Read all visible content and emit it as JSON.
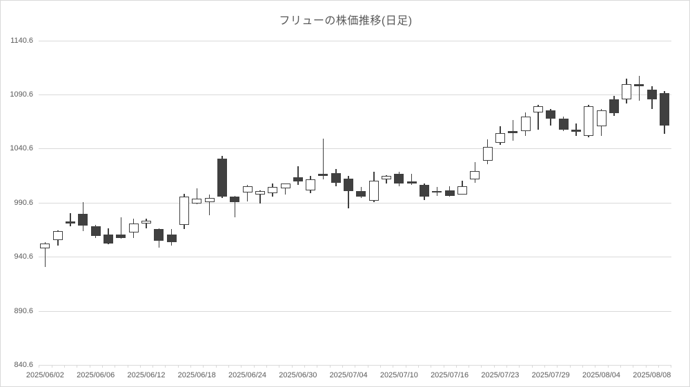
{
  "chart_data": {
    "type": "candlestick",
    "title": "フリューの株価推移(日足)",
    "legend": false,
    "grid": true,
    "y_axis": {
      "min": 840.6,
      "max": 1140.6,
      "step": 50,
      "tick_labels": [
        "1140.6",
        "1090.6",
        "1040.6",
        "990.6",
        "940.6",
        "890.6",
        "840.6"
      ]
    },
    "x_axis": {
      "tick_labels": [
        "2025/06/02",
        "2025/06/06",
        "2025/06/12",
        "2025/06/18",
        "2025/06/24",
        "2025/06/30",
        "2025/07/04",
        "2025/07/10",
        "2025/07/16",
        "2025/07/23",
        "2025/07/29",
        "2025/08/04",
        "2025/08/08"
      ],
      "label_every_n_candles": 4
    },
    "candles": [
      {
        "date": "2025/06/02",
        "open": 948,
        "high": 954,
        "low": 931,
        "close": 953
      },
      {
        "date": "2025/06/03",
        "open": 956,
        "high": 965,
        "low": 951,
        "close": 964
      },
      {
        "date": "2025/06/04",
        "open": 973,
        "high": 981,
        "low": 969,
        "close": 971
      },
      {
        "date": "2025/06/05",
        "open": 980,
        "high": 991,
        "low": 964,
        "close": 969
      },
      {
        "date": "2025/06/06",
        "open": 969,
        "high": 970,
        "low": 958,
        "close": 960
      },
      {
        "date": "2025/06/09",
        "open": 961,
        "high": 967,
        "low": 952,
        "close": 953
      },
      {
        "date": "2025/06/10",
        "open": 961,
        "high": 977,
        "low": 957,
        "close": 958
      },
      {
        "date": "2025/06/11",
        "open": 963,
        "high": 976,
        "low": 958,
        "close": 971
      },
      {
        "date": "2025/06/12",
        "open": 971,
        "high": 976,
        "low": 967,
        "close": 974
      },
      {
        "date": "2025/06/13",
        "open": 966,
        "high": 967,
        "low": 949,
        "close": 955
      },
      {
        "date": "2025/06/16",
        "open": 961,
        "high": 966,
        "low": 951,
        "close": 954
      },
      {
        "date": "2025/06/17",
        "open": 970,
        "high": 999,
        "low": 966,
        "close": 996
      },
      {
        "date": "2025/06/18",
        "open": 990,
        "high": 1004,
        "low": 989,
        "close": 994
      },
      {
        "date": "2025/06/19",
        "open": 991,
        "high": 998,
        "low": 979,
        "close": 995
      },
      {
        "date": "2025/06/20",
        "open": 1031,
        "high": 1034,
        "low": 995,
        "close": 996
      },
      {
        "date": "2025/06/23",
        "open": 996,
        "high": 997,
        "low": 977,
        "close": 991
      },
      {
        "date": "2025/06/24",
        "open": 1000,
        "high": 1007,
        "low": 992,
        "close": 1006
      },
      {
        "date": "2025/06/25",
        "open": 998,
        "high": 1002,
        "low": 990,
        "close": 1001
      },
      {
        "date": "2025/06/26",
        "open": 999,
        "high": 1008,
        "low": 996,
        "close": 1005
      },
      {
        "date": "2025/06/27",
        "open": 1004,
        "high": 1008,
        "low": 998,
        "close": 1008
      },
      {
        "date": "2025/06/30",
        "open": 1014,
        "high": 1024,
        "low": 1007,
        "close": 1010
      },
      {
        "date": "2025/07/01",
        "open": 1002,
        "high": 1015,
        "low": 999,
        "close": 1012
      },
      {
        "date": "2025/07/02",
        "open": 1017,
        "high": 1050,
        "low": 1012,
        "close": 1015
      },
      {
        "date": "2025/07/03",
        "open": 1018,
        "high": 1022,
        "low": 1006,
        "close": 1009
      },
      {
        "date": "2025/07/04",
        "open": 1013,
        "high": 1015,
        "low": 985,
        "close": 1001
      },
      {
        "date": "2025/07/07",
        "open": 1001,
        "high": 1005,
        "low": 995,
        "close": 996
      },
      {
        "date": "2025/07/08",
        "open": 992,
        "high": 1019,
        "low": 991,
        "close": 1011
      },
      {
        "date": "2025/07/09",
        "open": 1012,
        "high": 1016,
        "low": 1008,
        "close": 1015
      },
      {
        "date": "2025/07/10",
        "open": 1017,
        "high": 1019,
        "low": 1006,
        "close": 1008
      },
      {
        "date": "2025/07/11",
        "open": 1010,
        "high": 1017,
        "low": 1007,
        "close": 1008
      },
      {
        "date": "2025/07/14",
        "open": 1007,
        "high": 1008,
        "low": 993,
        "close": 996
      },
      {
        "date": "2025/07/15",
        "open": 1001,
        "high": 1005,
        "low": 997,
        "close": 1000
      },
      {
        "date": "2025/07/16",
        "open": 1002,
        "high": 1006,
        "low": 996,
        "close": 997
      },
      {
        "date": "2025/07/17",
        "open": 998,
        "high": 1011,
        "low": 998,
        "close": 1006
      },
      {
        "date": "2025/07/18",
        "open": 1012,
        "high": 1028,
        "low": 1009,
        "close": 1020
      },
      {
        "date": "2025/07/22",
        "open": 1029,
        "high": 1049,
        "low": 1026,
        "close": 1042
      },
      {
        "date": "2025/07/23",
        "open": 1046,
        "high": 1061,
        "low": 1044,
        "close": 1055
      },
      {
        "date": "2025/07/24",
        "open": 1057,
        "high": 1067,
        "low": 1048,
        "close": 1055
      },
      {
        "date": "2025/07/25",
        "open": 1057,
        "high": 1074,
        "low": 1052,
        "close": 1070
      },
      {
        "date": "2025/07/28",
        "open": 1074,
        "high": 1081,
        "low": 1058,
        "close": 1080
      },
      {
        "date": "2025/07/29",
        "open": 1076,
        "high": 1077,
        "low": 1062,
        "close": 1068
      },
      {
        "date": "2025/07/30",
        "open": 1068,
        "high": 1070,
        "low": 1057,
        "close": 1058
      },
      {
        "date": "2025/07/31",
        "open": 1058,
        "high": 1064,
        "low": 1052,
        "close": 1056
      },
      {
        "date": "2025/08/01",
        "open": 1052,
        "high": 1081,
        "low": 1051,
        "close": 1080
      },
      {
        "date": "2025/08/04",
        "open": 1061,
        "high": 1077,
        "low": 1052,
        "close": 1076
      },
      {
        "date": "2025/08/05",
        "open": 1086,
        "high": 1089,
        "low": 1071,
        "close": 1073
      },
      {
        "date": "2025/08/06",
        "open": 1086,
        "high": 1105,
        "low": 1082,
        "close": 1100
      },
      {
        "date": "2025/08/07",
        "open": 1100,
        "high": 1108,
        "low": 1085,
        "close": 1098
      },
      {
        "date": "2025/08/08",
        "open": 1095,
        "high": 1098,
        "low": 1077,
        "close": 1086
      },
      {
        "date": "2025/08/12",
        "open": 1092,
        "high": 1094,
        "low": 1054,
        "close": 1062
      }
    ]
  },
  "colors": {
    "up_fill": "#ffffff",
    "down_fill": "#404040",
    "outline": "#404040",
    "wick": "#3f3f3f",
    "grid": "#d9d9d9",
    "text": "#595959",
    "background": "#ffffff"
  }
}
